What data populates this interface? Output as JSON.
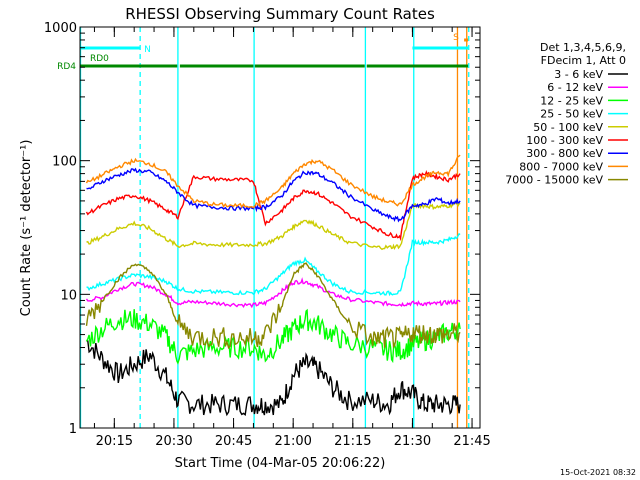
{
  "chart_data": {
    "type": "line",
    "title": "RHESSI Observing Summary Count Rates",
    "xlabel": "Start Time (04-Mar-05 20:06:22)",
    "ylabel": "Count Rate (s⁻¹ detector⁻¹)",
    "y_scale": "log",
    "ylim": [
      1,
      1000
    ],
    "y_ticks": [
      {
        "value": 1,
        "label": "1"
      },
      {
        "value": 10,
        "label": "10"
      },
      {
        "value": 100,
        "label": "100"
      },
      {
        "value": 1000,
        "label": "1000"
      }
    ],
    "xlim": [
      "20:06:22",
      "21:47:00"
    ],
    "x_ticks": [
      "20:15",
      "20:30",
      "20:45",
      "21:00",
      "21:15",
      "21:30",
      "21:45"
    ],
    "legend": {
      "position": "right",
      "header": [
        "Det 1,3,4,5,6,9,",
        "FDecim 1, Att 0"
      ]
    },
    "series": [
      {
        "name": "3 - 6 keV",
        "color": "#000000",
        "x": [
          "20:08",
          "20:12",
          "20:16",
          "20:20",
          "20:24",
          "20:28",
          "20:31",
          "20:35",
          "20:40",
          "20:45",
          "20:50",
          "20:53",
          "20:57",
          "21:00",
          "21:03",
          "21:06",
          "21:10",
          "21:14",
          "21:20",
          "21:24",
          "21:27",
          "21:30",
          "21:33",
          "21:36",
          "21:39",
          "21:42"
        ],
        "values": [
          4.5,
          3.3,
          2.5,
          3.0,
          3.5,
          2.4,
          1.6,
          1.5,
          1.5,
          1.5,
          1.5,
          1.5,
          1.5,
          2.5,
          3.0,
          2.8,
          2.0,
          1.6,
          1.6,
          1.5,
          2.0,
          1.8,
          1.5,
          1.5,
          1.5,
          1.5
        ]
      },
      {
        "name": "6 - 12 keV",
        "color": "#ff00ff",
        "x": [
          "20:08",
          "20:12",
          "20:16",
          "20:20",
          "20:24",
          "20:28",
          "20:31",
          "20:35",
          "20:40",
          "20:45",
          "20:50",
          "20:53",
          "20:57",
          "21:00",
          "21:03",
          "21:06",
          "21:10",
          "21:14",
          "21:20",
          "21:24",
          "21:27",
          "21:30",
          "21:33",
          "21:36",
          "21:39",
          "21:42"
        ],
        "values": [
          9,
          9.5,
          11,
          12,
          11.5,
          10,
          8.6,
          8.8,
          8.6,
          8.4,
          8.3,
          8.6,
          10.5,
          12.3,
          12.5,
          11.5,
          10,
          9.2,
          8.7,
          8.5,
          8.4,
          8.6,
          8.5,
          8.5,
          8.7,
          8.8
        ]
      },
      {
        "name": "12 - 25 keV",
        "color": "#00ff00",
        "x": [
          "20:08",
          "20:12",
          "20:16",
          "20:20",
          "20:24",
          "20:28",
          "20:31",
          "20:35",
          "20:40",
          "20:45",
          "20:50",
          "20:53",
          "20:57",
          "21:00",
          "21:03",
          "21:06",
          "21:10",
          "21:14",
          "21:20",
          "21:24",
          "21:27",
          "21:30",
          "21:33",
          "21:36",
          "21:39",
          "21:42"
        ],
        "values": [
          4.5,
          5.5,
          6.5,
          6.5,
          6.0,
          4.8,
          3.5,
          3.8,
          4.0,
          4.0,
          4.0,
          3.5,
          4.5,
          5.5,
          6.5,
          6.0,
          5.0,
          4.3,
          4.0,
          3.8,
          3.8,
          4.2,
          4.5,
          4.8,
          5.2,
          5.5
        ]
      },
      {
        "name": "25 - 50 keV",
        "color": "#00ffff",
        "x": [
          "20:08",
          "20:12",
          "20:16",
          "20:20",
          "20:24",
          "20:28",
          "20:31",
          "20:35",
          "20:40",
          "20:45",
          "20:50",
          "20:53",
          "20:57",
          "21:00",
          "21:03",
          "21:06",
          "21:10",
          "21:14",
          "21:20",
          "21:24",
          "21:27",
          "21:30",
          "21:33",
          "21:36",
          "21:39",
          "21:42"
        ],
        "values": [
          11,
          12,
          13,
          14,
          13.5,
          12.5,
          11,
          10.5,
          10.4,
          10.3,
          10.3,
          11,
          14,
          17,
          18,
          15,
          12,
          10.5,
          10.3,
          10.2,
          10.3,
          24.5,
          24.5,
          24.5,
          25.5,
          28
        ]
      },
      {
        "name": "50 - 100 keV",
        "color": "#cccc00",
        "x": [
          "20:08",
          "20:12",
          "20:16",
          "20:20",
          "20:24",
          "20:28",
          "20:31",
          "20:35",
          "20:40",
          "20:45",
          "20:50",
          "20:53",
          "20:57",
          "21:00",
          "21:03",
          "21:06",
          "21:10",
          "21:14",
          "21:20",
          "21:24",
          "21:27",
          "21:30",
          "21:33",
          "21:36",
          "21:39",
          "21:42"
        ],
        "values": [
          24,
          27,
          31,
          34,
          31,
          26,
          23,
          24,
          23.5,
          23.4,
          23.5,
          24,
          27,
          32,
          36,
          33,
          28,
          24.5,
          22.5,
          22.5,
          23,
          46,
          46,
          45,
          46,
          48
        ]
      },
      {
        "name": "100 - 300 keV",
        "color": "#ff0000",
        "x": [
          "20:08",
          "20:12",
          "20:16",
          "20:20",
          "20:24",
          "20:28",
          "20:31",
          "20:35",
          "20:40",
          "20:45",
          "20:50",
          "20:53",
          "20:57",
          "21:00",
          "21:03",
          "21:06",
          "21:10",
          "21:14",
          "21:20",
          "21:24",
          "21:27",
          "21:30",
          "21:33",
          "21:36",
          "21:39",
          "21:42"
        ],
        "values": [
          40,
          46,
          52,
          55,
          50,
          43,
          38,
          76,
          73,
          72,
          71,
          34,
          42,
          52,
          60,
          57,
          48,
          39,
          32,
          28,
          27,
          74,
          80,
          76,
          72,
          80
        ]
      },
      {
        "name": "300 - 800 keV",
        "color": "#0000ff",
        "x": [
          "20:08",
          "20:12",
          "20:16",
          "20:20",
          "20:24",
          "20:28",
          "20:31",
          "20:35",
          "20:40",
          "20:45",
          "20:50",
          "20:53",
          "20:57",
          "21:00",
          "21:03",
          "21:06",
          "21:10",
          "21:14",
          "21:20",
          "21:24",
          "21:27",
          "21:30",
          "21:33",
          "21:36",
          "21:39",
          "21:42"
        ],
        "values": [
          60,
          70,
          78,
          85,
          82,
          70,
          58,
          46,
          45,
          44,
          44,
          45,
          54,
          70,
          82,
          80,
          68,
          55,
          43,
          38,
          36,
          46,
          47,
          52,
          48,
          50
        ]
      },
      {
        "name": "800 - 7000 keV",
        "color": "#ff8800",
        "x": [
          "20:08",
          "20:12",
          "20:16",
          "20:20",
          "20:24",
          "20:28",
          "20:31",
          "20:35",
          "20:40",
          "20:45",
          "20:50",
          "20:53",
          "20:57",
          "21:00",
          "21:03",
          "21:06",
          "21:10",
          "21:14",
          "21:20",
          "21:24",
          "21:27",
          "21:30",
          "21:33",
          "21:36",
          "21:39",
          "21:42"
        ],
        "values": [
          68,
          78,
          90,
          100,
          95,
          82,
          65,
          50,
          47,
          46,
          46,
          50,
          62,
          80,
          95,
          100,
          85,
          68,
          54,
          49,
          47,
          66,
          75,
          82,
          80,
          110
        ]
      },
      {
        "name": "7000 - 15000 keV",
        "color": "#888800",
        "x": [
          "20:08",
          "20:12",
          "20:16",
          "20:20",
          "20:24",
          "20:28",
          "20:31",
          "20:35",
          "20:40",
          "20:45",
          "20:50",
          "20:53",
          "20:57",
          "21:00",
          "21:03",
          "21:06",
          "21:10",
          "21:14",
          "21:20",
          "21:24",
          "21:27",
          "21:30",
          "21:33",
          "21:36",
          "21:39",
          "21:42"
        ],
        "values": [
          6.5,
          9,
          13,
          17,
          15,
          10,
          6,
          4.8,
          4.8,
          4.7,
          4.7,
          5,
          8,
          14,
          17,
          14,
          9,
          6,
          4.6,
          4.7,
          4.7,
          5.2,
          5.1,
          5.0,
          5.0,
          5.2
        ]
      }
    ],
    "flags": [
      {
        "label": "N",
        "color": "#00ffff",
        "segments": [
          [
            "20:06:22",
            "20:21:30"
          ],
          [
            "21:30",
            "21:44"
          ]
        ]
      },
      {
        "label": "RD0",
        "color": "#008800",
        "segments": []
      },
      {
        "label": "RD4",
        "color": "#008800",
        "segments": [
          [
            "20:06:22",
            "20:30:50"
          ],
          [
            "20:31:30",
            "20:50:00"
          ],
          [
            "20:50:20",
            "21:18:00"
          ],
          [
            "21:18:30",
            "21:44:00"
          ]
        ]
      },
      {
        "label": "S",
        "color": "#ff8800",
        "segments": [
          [
            "21:43",
            "21:44"
          ]
        ]
      }
    ],
    "vertical_markers": [
      {
        "x": "20:06:30",
        "color": "#00ffff",
        "style": "solid"
      },
      {
        "x": "20:21:30",
        "color": "#00ffff",
        "style": "dashed"
      },
      {
        "x": "20:31:00",
        "color": "#00ffff",
        "style": "solid"
      },
      {
        "x": "20:50:10",
        "color": "#00ffff",
        "style": "solid"
      },
      {
        "x": "21:18:10",
        "color": "#00ffff",
        "style": "solid"
      },
      {
        "x": "21:30:20",
        "color": "#00ffff",
        "style": "solid"
      },
      {
        "x": "21:41:20",
        "color": "#ff8800",
        "style": "solid"
      },
      {
        "x": "21:43:40",
        "color": "#ff8800",
        "style": "solid"
      },
      {
        "x": "21:44:10",
        "color": "#00ffff",
        "style": "dashed"
      }
    ]
  },
  "timestamp": "15-Oct-2021 08:32"
}
